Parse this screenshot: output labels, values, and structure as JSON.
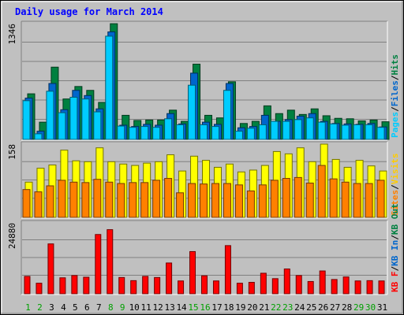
{
  "chart_data": [
    {
      "type": "bar",
      "panel": "top",
      "title": "Daily usage for March 2014",
      "categories": [
        "1",
        "2",
        "3",
        "4",
        "5",
        "6",
        "7",
        "8",
        "9",
        "10",
        "11",
        "12",
        "13",
        "14",
        "15",
        "16",
        "17",
        "18",
        "19",
        "20",
        "21",
        "22",
        "23",
        "24",
        "25",
        "26",
        "27",
        "28",
        "29",
        "30",
        "31"
      ],
      "ymax_label": "1346",
      "ylim": [
        0,
        1346
      ],
      "series": [
        {
          "name": "Pages",
          "color": "#00ccff",
          "values": [
            450,
            65,
            560,
            310,
            490,
            470,
            320,
            1200,
            155,
            140,
            150,
            140,
            240,
            170,
            630,
            170,
            150,
            570,
            95,
            130,
            170,
            210,
            210,
            230,
            250,
            200,
            180,
            165,
            170,
            170,
            140
          ]
        },
        {
          "name": "Files",
          "color": "#0066cc",
          "values": [
            480,
            95,
            650,
            345,
            570,
            510,
            355,
            1250,
            165,
            150,
            175,
            165,
            300,
            180,
            770,
            200,
            175,
            650,
            135,
            150,
            280,
            210,
            230,
            270,
            300,
            210,
            185,
            180,
            175,
            185,
            145
          ]
        },
        {
          "name": "Hits",
          "color": "#008040",
          "values": [
            530,
            200,
            840,
            470,
            615,
            570,
            430,
            1345,
            280,
            220,
            225,
            225,
            340,
            210,
            875,
            280,
            250,
            670,
            185,
            210,
            390,
            300,
            340,
            290,
            355,
            275,
            245,
            240,
            215,
            225,
            205
          ]
        }
      ],
      "legend_right": [
        "Pages",
        "/",
        "Files",
        "/",
        "Hits"
      ],
      "grid": true
    },
    {
      "type": "bar",
      "panel": "middle",
      "categories": [
        "1",
        "2",
        "3",
        "4",
        "5",
        "6",
        "7",
        "8",
        "9",
        "10",
        "11",
        "12",
        "13",
        "14",
        "15",
        "16",
        "17",
        "18",
        "19",
        "20",
        "21",
        "22",
        "23",
        "24",
        "25",
        "26",
        "27",
        "28",
        "29",
        "30",
        "31"
      ],
      "ymax_label": "158",
      "ylim": [
        0,
        158
      ],
      "series": [
        {
          "name": "Sites",
          "color": "#ff8000",
          "values": [
            60,
            55,
            68,
            80,
            76,
            75,
            82,
            76,
            73,
            75,
            75,
            80,
            84,
            53,
            73,
            72,
            73,
            73,
            70,
            57,
            70,
            80,
            84,
            86,
            74,
            112,
            83,
            76,
            73,
            73,
            80
          ]
        },
        {
          "name": "Visits",
          "color": "#ffff00",
          "values": [
            76,
            106,
            113,
            145,
            122,
            120,
            150,
            120,
            115,
            112,
            117,
            120,
            135,
            100,
            132,
            123,
            108,
            115,
            98,
            102,
            112,
            142,
            137,
            150,
            120,
            158,
            125,
            108,
            123,
            111,
            100
          ]
        }
      ],
      "legend_right": [
        "Sites",
        "/",
        "Visits"
      ],
      "grid": true
    },
    {
      "type": "bar",
      "panel": "bottom",
      "categories": [
        "1",
        "2",
        "3",
        "4",
        "5",
        "6",
        "7",
        "8",
        "9",
        "10",
        "11",
        "12",
        "13",
        "14",
        "15",
        "16",
        "17",
        "18",
        "19",
        "20",
        "21",
        "22",
        "23",
        "24",
        "25",
        "26",
        "27",
        "28",
        "29",
        "30",
        "31"
      ],
      "ymax_label": "24880",
      "ylim": [
        0,
        24880
      ],
      "series": [
        {
          "name": "KBytes",
          "color": "#ff0000",
          "values": [
            6100,
            3700,
            17500,
            5600,
            6400,
            5800,
            20800,
            22500,
            5700,
            4600,
            6100,
            5700,
            10800,
            4500,
            14800,
            6300,
            4500,
            16900,
            3700,
            4000,
            7200,
            5300,
            8700,
            6400,
            4300,
            8000,
            5000,
            5900,
            4500,
            4600,
            4500
          ]
        }
      ],
      "legend_right": [
        "KB F",
        "/",
        "KB In",
        "/",
        "KB Out"
      ],
      "grid": true
    }
  ],
  "x_axis": {
    "labels": [
      "1",
      "2",
      "3",
      "4",
      "5",
      "6",
      "7",
      "8",
      "9",
      "10",
      "11",
      "12",
      "13",
      "14",
      "15",
      "16",
      "17",
      "18",
      "19",
      "20",
      "21",
      "22",
      "23",
      "24",
      "25",
      "26",
      "27",
      "28",
      "29",
      "30",
      "31"
    ],
    "weekend_days": [
      "1",
      "2",
      "8",
      "9",
      "15",
      "16",
      "22",
      "23",
      "29",
      "30"
    ],
    "weekday_color": "#000000",
    "weekend_color": "#00a000"
  },
  "colors": {
    "background": "#c0c0c0",
    "panel_bg": "#c0c0c0",
    "grid": "#808080",
    "title": "#0000ff",
    "legend_colors": {
      "Pages": "#00ccff",
      "Files": "#0066cc",
      "Hits": "#008040",
      "Sites": "#ff8000",
      "Visits": "#ffcc00",
      "KB F": "#ff0000",
      "KB In": "#0066cc",
      "KB Out": "#008040",
      "sep": "#000000"
    }
  }
}
